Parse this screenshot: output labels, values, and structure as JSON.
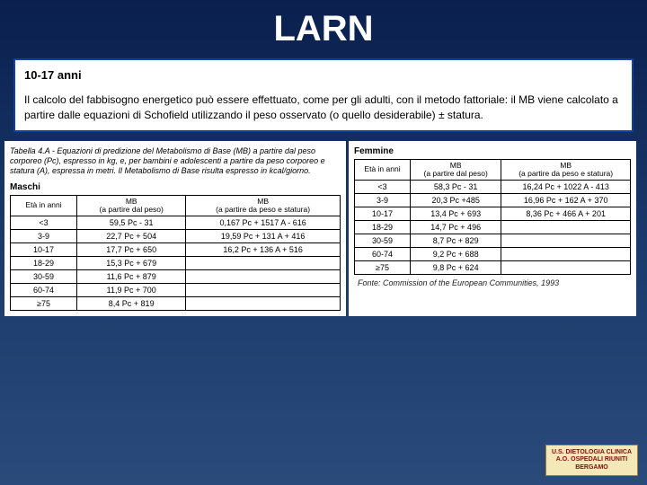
{
  "title": "LARN",
  "textbox": {
    "subtitle": "10-17 anni",
    "body": "Il calcolo del fabbisogno energetico può essere effettuato, come per gli adulti, con il metodo fattoriale: il MB viene calcolato a partire dalle equazioni di Schofield utilizzando il peso osservato (o quello desiderabile) ± statura."
  },
  "caption": "Tabella 4.A - Equazioni di predizione del Metabolismo di Base (MB) a partire dal peso corporeo (Pc), espresso in kg, e, per bambini e adolescenti a partire da peso corporeo e statura (A), espressa in metri. Il Metabolismo di Base risulta espresso in kcal/giorno.",
  "male": {
    "label": "Maschi",
    "headers": [
      "Età in anni",
      "MB\n(a partire dal peso)",
      "MB\n(a partire da peso e statura)"
    ],
    "rows": [
      [
        "<3",
        "59,5 Pc - 31",
        "0,167 Pc + 1517 A - 616"
      ],
      [
        "3-9",
        "22,7 Pc + 504",
        "19,59 Pc + 131 A + 416"
      ],
      [
        "10-17",
        "17,7 Pc + 650",
        "16,2 Pc + 136 A + 516"
      ],
      [
        "18-29",
        "15,3 Pc + 679",
        ""
      ],
      [
        "30-59",
        "11,6 Pc + 879",
        ""
      ],
      [
        "60-74",
        "11,9 Pc + 700",
        ""
      ],
      [
        "≥75",
        "8,4 Pc + 819",
        ""
      ]
    ]
  },
  "female": {
    "label": "Femmine",
    "headers": [
      "Età in anni",
      "MB\n(a partire dal peso)",
      "MB\n(a partire da peso e statura)"
    ],
    "rows": [
      [
        "<3",
        "58,3 Pc - 31",
        "16,24 Pc + 1022 A - 413"
      ],
      [
        "3-9",
        "20,3 Pc +485",
        "16,96 Pc + 162 A + 370"
      ],
      [
        "10-17",
        "13,4 Pc + 693",
        "8,36 Pc + 466 A + 201"
      ],
      [
        "18-29",
        "14,7 Pc + 496",
        ""
      ],
      [
        "30-59",
        "8,7 Pc + 829",
        ""
      ],
      [
        "60-74",
        "9,2 Pc + 688",
        ""
      ],
      [
        "≥75",
        "9,8 Pc + 624",
        ""
      ]
    ]
  },
  "source": "Fonte: Commission of the European Communities, 1993",
  "logo": {
    "line1": "U.S. DIETOLOGIA CLINICA",
    "line2": "A.O. OSPEDALI RIUNITI",
    "line3": "BERGAMO"
  },
  "colors": {
    "bg_top": "#0a1f4d",
    "bg_bottom": "#2a4a7b",
    "box_border": "#1040a0",
    "title_color": "#ffffff",
    "logo_bg": "#f5e8b8",
    "logo_text": "#7a1010"
  }
}
